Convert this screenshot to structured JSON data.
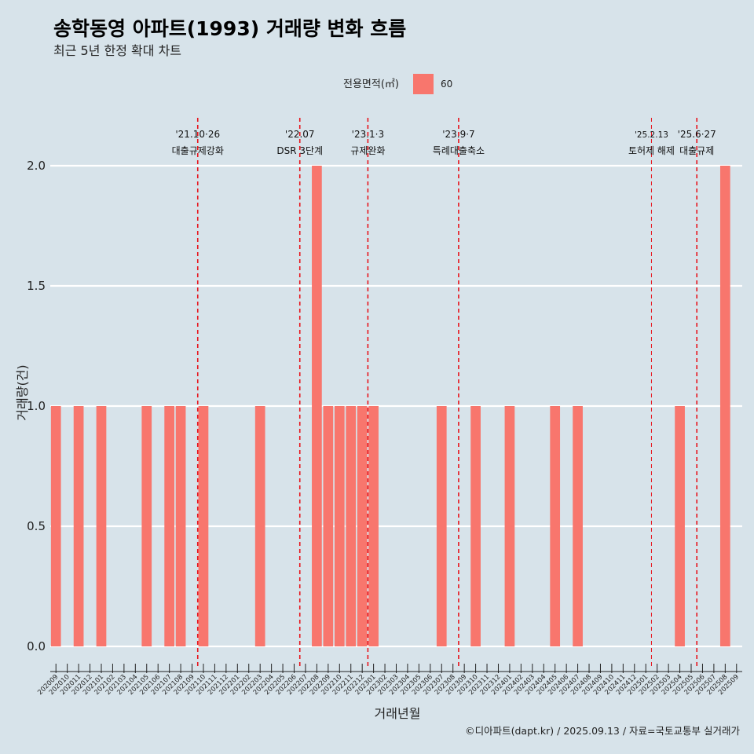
{
  "chart_data": {
    "type": "bar",
    "title": "송학동영 아파트(1993) 거래량 변화 흐름",
    "subtitle": "최근 5년 한정 확대 차트",
    "xlabel": "거래년월",
    "ylabel": "거래량(건)",
    "ylim": [
      0,
      2
    ],
    "yticks": [
      "0.0",
      "0.5",
      "1.0",
      "1.5",
      "2.0"
    ],
    "legend": {
      "title": "전용면적(㎡)",
      "placement": "top",
      "entries": [
        {
          "label": "60",
          "color": "#f8766d"
        }
      ]
    },
    "categories": [
      "202009",
      "202010",
      "202011",
      "202012",
      "202101",
      "202102",
      "202103",
      "202104",
      "202105",
      "202106",
      "202107",
      "202108",
      "202109",
      "202110",
      "202111",
      "202112",
      "202201",
      "202202",
      "202203",
      "202204",
      "202205",
      "202206",
      "202207",
      "202208",
      "202209",
      "202210",
      "202211",
      "202212",
      "202301",
      "202302",
      "202303",
      "202304",
      "202305",
      "202306",
      "202307",
      "202308",
      "202309",
      "202310",
      "202311",
      "202312",
      "202401",
      "202402",
      "202403",
      "202404",
      "202405",
      "202406",
      "202407",
      "202408",
      "202409",
      "202410",
      "202411",
      "202412",
      "202501",
      "202502",
      "202503",
      "202504",
      "202505",
      "202506",
      "202507",
      "202508",
      "202509"
    ],
    "series": [
      {
        "name": "60",
        "color": "#f8766d",
        "values": [
          1,
          0,
          1,
          0,
          1,
          0,
          0,
          0,
          1,
          0,
          1,
          1,
          0,
          1,
          0,
          0,
          0,
          0,
          1,
          0,
          0,
          0,
          0,
          2,
          1,
          1,
          1,
          1,
          1,
          0,
          0,
          0,
          0,
          0,
          1,
          0,
          0,
          1,
          0,
          0,
          1,
          0,
          0,
          0,
          1,
          0,
          1,
          0,
          0,
          0,
          0,
          0,
          0,
          0,
          0,
          1,
          0,
          0,
          0,
          2,
          0
        ]
      }
    ],
    "annotations": [
      {
        "x": "202110",
        "date": "'21.10·26",
        "label": "대출규제강화",
        "small": false
      },
      {
        "x": "202207",
        "date": "'22.07",
        "label": "DSR 3단계",
        "small": false
      },
      {
        "x": "202301",
        "date": "'23.1·3",
        "label": "규제완화",
        "small": false
      },
      {
        "x": "202309",
        "date": "'23.9·7",
        "label": "특례대출축소",
        "small": false
      },
      {
        "x": "202502",
        "date": "'25.2.13",
        "label": "토허제 해제",
        "small": true
      },
      {
        "x": "202506",
        "date": "'25.6·27",
        "label": "대출규제",
        "small": false
      }
    ],
    "caption": "©디아파트(dapt.kr) / 2025.09.13 / 자료=국토교통부 실거래가",
    "grid": true
  }
}
